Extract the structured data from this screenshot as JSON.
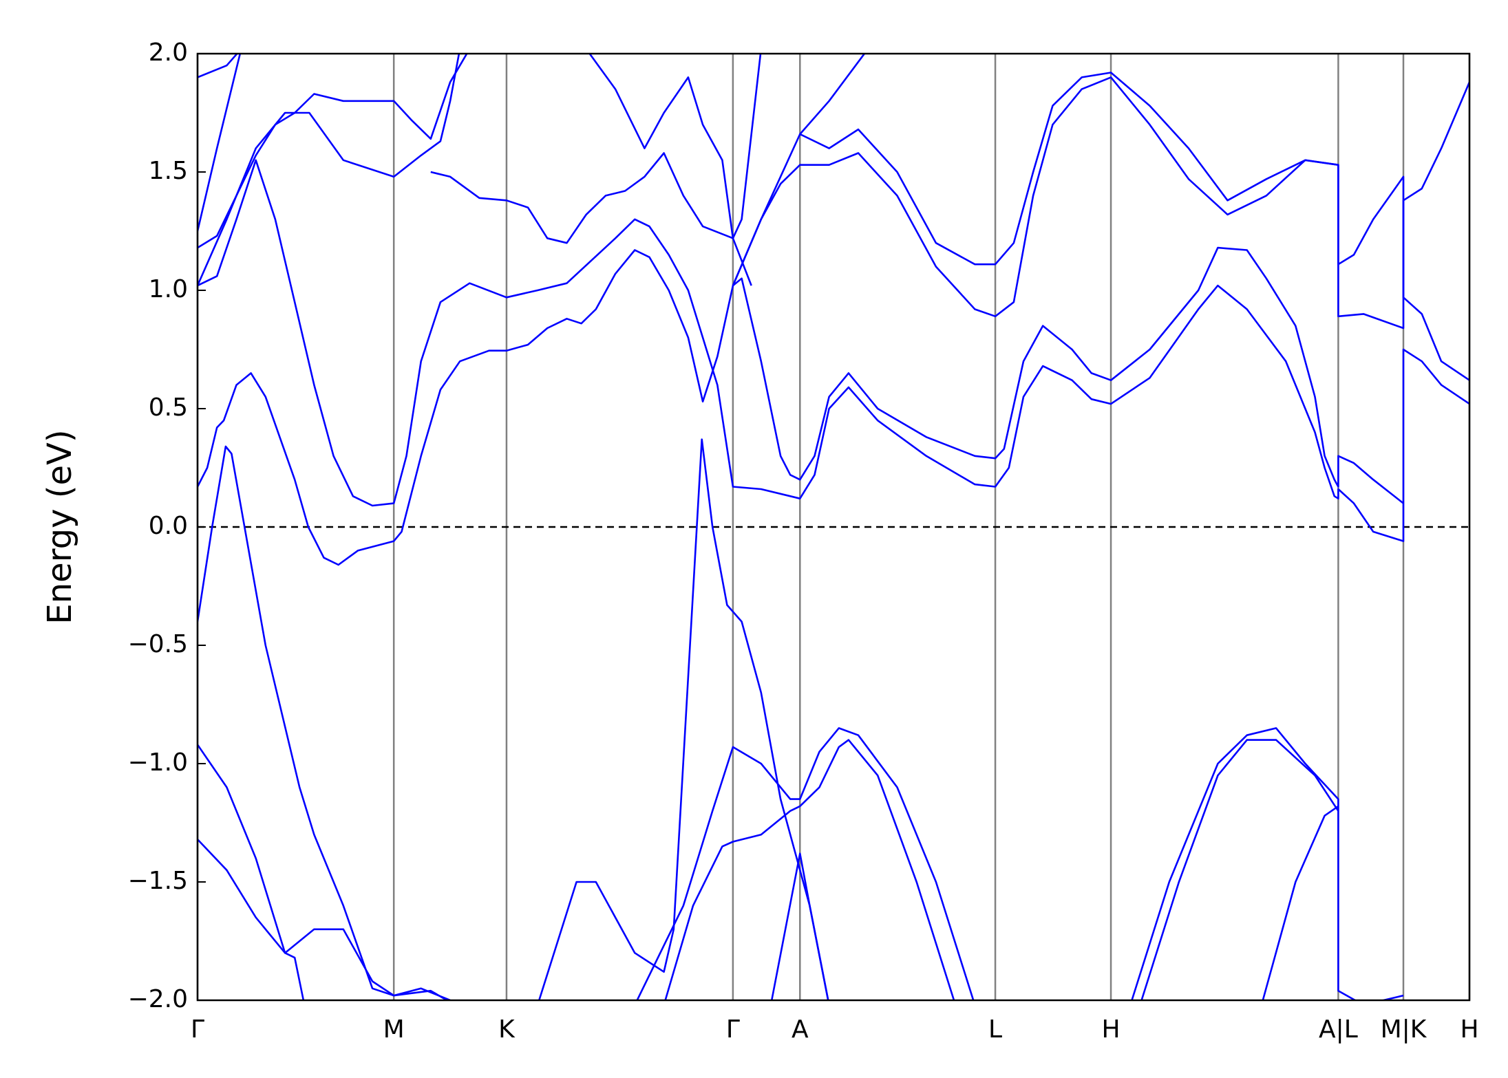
{
  "chart_data": {
    "type": "line",
    "ylabel": "Energy (eV)",
    "xlim": [
      0,
      13.09
    ],
    "ylim": [
      -2,
      2
    ],
    "xticks": [
      {
        "value": 0,
        "label": "Γ"
      },
      {
        "value": 2.02,
        "label": "M"
      },
      {
        "value": 3.18,
        "label": "K"
      },
      {
        "value": 5.51,
        "label": "Γ"
      },
      {
        "value": 6.2,
        "label": "A"
      },
      {
        "value": 8.21,
        "label": "L"
      },
      {
        "value": 9.4,
        "label": "H"
      },
      {
        "value": 11.74,
        "label": "A|L"
      },
      {
        "value": 12.41,
        "label": "M|K"
      },
      {
        "value": 13.09,
        "label": "H"
      }
    ],
    "yticks": [
      {
        "value": -2,
        "label": "−2.0"
      },
      {
        "value": -1.5,
        "label": "−1.5"
      },
      {
        "value": -1,
        "label": "−1.0"
      },
      {
        "value": -0.5,
        "label": "−0.5"
      },
      {
        "value": 0,
        "label": "0.0"
      },
      0.5,
      {
        "value": 1,
        "label": "1.0"
      },
      1.5,
      {
        "value": 2,
        "label": "2.0"
      }
    ],
    "xgrid": true,
    "grid_color": "#808080",
    "fermi_level": 0,
    "series": [
      {
        "color": "#0000ff",
        "x": [
          0,
          0.15,
          0.29,
          0.35,
          0.7,
          1.05,
          1.2,
          1.5,
          1.8,
          2.02,
          2.4,
          2.65
        ],
        "values": [
          -0.4,
          0,
          0.34,
          0.31,
          -0.5,
          -1.1,
          -1.3,
          -1.6,
          -1.95,
          -1.98,
          -1.96,
          -2.02
        ]
      },
      {
        "color": "#0000ff",
        "x": [
          0,
          0.1,
          0.2,
          0.27,
          0.4,
          0.55,
          0.7,
          1.0,
          1.14,
          1.3,
          1.45,
          1.65,
          2.02,
          2.1,
          2.3,
          2.5,
          2.7,
          3.0,
          3.18,
          3.4,
          3.6,
          3.8,
          3.95,
          4.1,
          4.3,
          4.5,
          4.65,
          4.85,
          5.05,
          5.2,
          5.35,
          5.51,
          5.6,
          5.8,
          6.0,
          6.1,
          6.2,
          6.35,
          6.5,
          6.7,
          7.0,
          7.5,
          8.0,
          8.21,
          8.3,
          8.5,
          8.7,
          9.0,
          9.2,
          9.4,
          9.8,
          10.3,
          10.5,
          10.8,
          11.0,
          11.3,
          11.5,
          11.6,
          11.7,
          11.74,
          11.74,
          11.9,
          12.1,
          12.41
        ],
        "values": [
          0.17,
          0.25,
          0.42,
          0.45,
          0.6,
          0.65,
          0.55,
          0.2,
          0,
          -0.13,
          -0.16,
          -0.1,
          -0.06,
          -0.02,
          0.3,
          0.58,
          0.7,
          0.745,
          0.745,
          0.77,
          0.84,
          0.88,
          0.86,
          0.92,
          1.07,
          1.17,
          1.14,
          1.0,
          0.8,
          0.53,
          0.72,
          1.02,
          1.05,
          0.7,
          0.3,
          0.22,
          0.2,
          0.3,
          0.55,
          0.65,
          0.5,
          0.38,
          0.3,
          0.29,
          0.33,
          0.7,
          0.85,
          0.75,
          0.65,
          0.62,
          0.75,
          1.0,
          1.18,
          1.17,
          1.05,
          0.85,
          0.55,
          0.3,
          0.2,
          0.17,
          0.3,
          0.27,
          0.2,
          0.1
        ]
      },
      {
        "color": "#0000ff",
        "x": [
          0,
          0.2,
          0.4,
          0.6,
          0.8,
          1.0,
          1.2,
          1.4,
          1.6,
          1.8,
          2.02,
          2.15,
          2.3,
          2.5,
          2.8,
          3.18,
          3.5,
          3.8,
          4.3,
          4.5,
          4.65,
          4.85,
          5.05,
          5.2,
          5.35,
          5.51,
          5.8,
          6.2,
          6.35,
          6.5,
          6.7,
          7.0,
          7.5,
          8.0,
          8.21,
          8.35,
          8.5,
          8.7,
          9.0,
          9.2,
          9.4,
          9.8,
          10.3,
          10.5,
          10.8,
          11.2,
          11.5,
          11.6,
          11.7,
          11.74,
          11.74,
          11.9,
          12.1,
          12.41,
          12.41,
          12.6,
          12.8,
          13.09
        ],
        "values": [
          1.02,
          1.06,
          1.3,
          1.55,
          1.3,
          0.95,
          0.6,
          0.3,
          0.13,
          0.09,
          0.1,
          0.3,
          0.7,
          0.95,
          1.03,
          0.97,
          1.0,
          1.03,
          1.22,
          1.3,
          1.27,
          1.15,
          1.0,
          0.8,
          0.6,
          0.17,
          0.16,
          0.12,
          0.22,
          0.5,
          0.59,
          0.45,
          0.3,
          0.18,
          0.17,
          0.25,
          0.55,
          0.68,
          0.62,
          0.54,
          0.52,
          0.63,
          0.92,
          1.02,
          0.92,
          0.7,
          0.4,
          0.25,
          0.13,
          0.12,
          0.16,
          0.1,
          -0.02,
          -0.06,
          0.75,
          0.7,
          0.6,
          0.52
        ]
      },
      {
        "color": "#0000ff",
        "x": [
          0,
          0.2,
          0.4,
          0.6,
          0.8,
          1.0,
          1.2,
          1.5,
          2.02,
          2.2,
          2.4,
          2.6,
          2.8
        ],
        "values": [
          1.18,
          1.23,
          1.4,
          1.57,
          1.7,
          1.75,
          1.83,
          1.8,
          1.8,
          1.72,
          1.64,
          1.88,
          2.02
        ]
      },
      {
        "color": "#0000ff",
        "x": [
          0,
          0.3,
          0.6,
          0.9,
          1.15,
          1.5,
          2.02,
          2.3,
          2.5,
          2.6,
          2.7
        ],
        "values": [
          1.02,
          1.3,
          1.6,
          1.75,
          1.75,
          1.55,
          1.48,
          1.57,
          1.63,
          1.8,
          2.02
        ]
      },
      {
        "color": "#0000ff",
        "x": [
          2.4,
          2.6,
          2.9,
          3.18,
          3.4,
          3.6,
          3.8,
          4.0,
          4.2,
          4.4,
          4.6,
          4.8,
          5.0,
          5.2,
          5.51,
          5.7
        ],
        "values": [
          1.5,
          1.48,
          1.39,
          1.38,
          1.35,
          1.22,
          1.2,
          1.32,
          1.4,
          1.42,
          1.48,
          1.58,
          1.4,
          1.27,
          1.22,
          1.02
        ]
      },
      {
        "color": "#0000ff",
        "x": [
          5.51,
          5.8,
          6.0,
          6.2,
          6.5,
          6.8,
          7.2,
          7.6,
          8.0,
          8.21,
          8.4,
          8.6,
          8.8,
          9.1,
          9.4,
          9.8,
          10.2,
          10.6,
          11.0,
          11.4,
          11.74,
          11.74,
          12.0,
          12.41,
          12.41,
          12.6,
          12.8,
          13.09
        ],
        "values": [
          1.02,
          1.3,
          1.45,
          1.53,
          1.53,
          1.58,
          1.4,
          1.1,
          0.92,
          0.89,
          0.95,
          1.4,
          1.7,
          1.85,
          1.9,
          1.7,
          1.47,
          1.32,
          1.4,
          1.55,
          1.53,
          0.89,
          0.9,
          0.84,
          1.38,
          1.43,
          1.6,
          1.88
        ]
      },
      {
        "color": "#0000ff",
        "x": [
          5.51,
          5.8,
          6.2,
          6.5,
          6.8,
          7.2,
          7.6,
          8.0,
          8.21,
          8.4,
          8.6,
          8.8,
          9.1,
          9.4,
          9.8,
          10.2,
          10.6,
          11.0,
          11.4,
          11.74,
          11.74,
          11.9,
          12.1,
          12.41,
          12.41,
          12.6,
          12.8,
          13.09
        ],
        "values": [
          1.02,
          1.3,
          1.66,
          1.6,
          1.68,
          1.5,
          1.2,
          1.11,
          1.11,
          1.2,
          1.5,
          1.78,
          1.9,
          1.92,
          1.78,
          1.6,
          1.38,
          1.47,
          1.55,
          1.53,
          1.11,
          1.15,
          1.3,
          1.48,
          0.97,
          0.9,
          0.7,
          0.62
        ]
      },
      {
        "color": "#0000ff",
        "x": [
          6.2,
          6.5,
          6.9
        ],
        "values": [
          1.66,
          1.8,
          2.02
        ]
      },
      {
        "color": "#0000ff",
        "x": [
          0,
          0.3,
          0.6,
          0.9,
          1.2,
          1.5,
          1.8,
          2.02,
          2.3,
          2.6
        ],
        "values": [
          -0.92,
          -1.1,
          -1.4,
          -1.8,
          -1.7,
          -1.7,
          -1.92,
          -1.98,
          -1.95,
          -2.0
        ]
      },
      {
        "color": "#0000ff",
        "x": [
          0,
          0.3,
          0.6,
          0.9,
          1.0,
          1.1
        ],
        "values": [
          -1.32,
          -1.45,
          -1.65,
          -1.8,
          -1.82,
          -2.02
        ]
      },
      {
        "color": "#0000ff",
        "x": [
          4.5,
          5.0,
          5.3,
          5.51,
          5.8,
          6.1,
          6.2,
          6.4,
          6.6,
          6.8,
          7.2,
          7.6,
          8.0
        ],
        "values": [
          -2.02,
          -1.6,
          -1.2,
          -0.93,
          -1.0,
          -1.15,
          -1.15,
          -0.95,
          -0.85,
          -0.88,
          -1.1,
          -1.5,
          -2.02
        ]
      },
      {
        "color": "#0000ff",
        "x": [
          4.8,
          5.1,
          5.4,
          5.51,
          5.8,
          6.1,
          6.2,
          6.4,
          6.6,
          6.7,
          7.0,
          7.4,
          7.8
        ],
        "values": [
          -2.02,
          -1.6,
          -1.35,
          -1.33,
          -1.3,
          -1.2,
          -1.18,
          -1.1,
          -0.93,
          -0.9,
          -1.05,
          -1.5,
          -2.02
        ]
      },
      {
        "color": "#0000ff",
        "x": [
          3.5,
          3.9,
          4.1,
          4.5,
          4.8,
          4.9,
          5.19,
          5.3,
          5.45,
          5.6,
          5.8,
          6.0,
          6.3,
          6.5
        ],
        "values": [
          -2.02,
          -1.5,
          -1.5,
          -1.8,
          -1.88,
          -1.7,
          0.37,
          0,
          -0.33,
          -0.4,
          -0.7,
          -1.15,
          -1.6,
          -2.02
        ]
      },
      {
        "color": "#0000ff",
        "x": [
          9.6,
          10.0,
          10.5,
          10.8,
          11.1,
          11.4,
          11.74,
          11.74,
          12.0,
          12.41
        ],
        "values": [
          -2.02,
          -1.5,
          -1.0,
          -0.88,
          -0.85,
          -1.0,
          -1.15,
          -1.96,
          -2.02,
          -1.98
        ]
      },
      {
        "color": "#0000ff",
        "x": [
          9.7,
          10.1,
          10.5,
          10.8,
          11.1,
          11.5,
          11.74
        ],
        "values": [
          -2.02,
          -1.5,
          -1.05,
          -0.9,
          -0.9,
          -1.05,
          -1.2
        ]
      },
      {
        "color": "#0000ff",
        "x": [
          10.95,
          11.3,
          11.6,
          11.74
        ],
        "values": [
          -2.02,
          -1.5,
          -1.22,
          -1.18
        ]
      },
      {
        "color": "#0000ff",
        "x": [
          5.9,
          6.2,
          6.3,
          6.5
        ],
        "values": [
          -2.02,
          -1.38,
          -1.6,
          -2.02
        ]
      },
      {
        "color": "#0000ff",
        "x": [
          0,
          0.3,
          0.45
        ],
        "values": [
          1.9,
          1.95,
          2.02
        ]
      },
      {
        "color": "#0000ff",
        "x": [
          0,
          0.2,
          0.45
        ],
        "values": [
          1.25,
          1.6,
          2.02
        ]
      },
      {
        "color": "#0000ff",
        "x": [
          4.0,
          4.3,
          4.6,
          4.8,
          5.05,
          5.2,
          5.4,
          5.51,
          5.6,
          5.8
        ],
        "values": [
          2.02,
          1.85,
          1.6,
          1.75,
          1.9,
          1.7,
          1.55,
          1.22,
          1.3,
          2.02
        ]
      }
    ]
  }
}
